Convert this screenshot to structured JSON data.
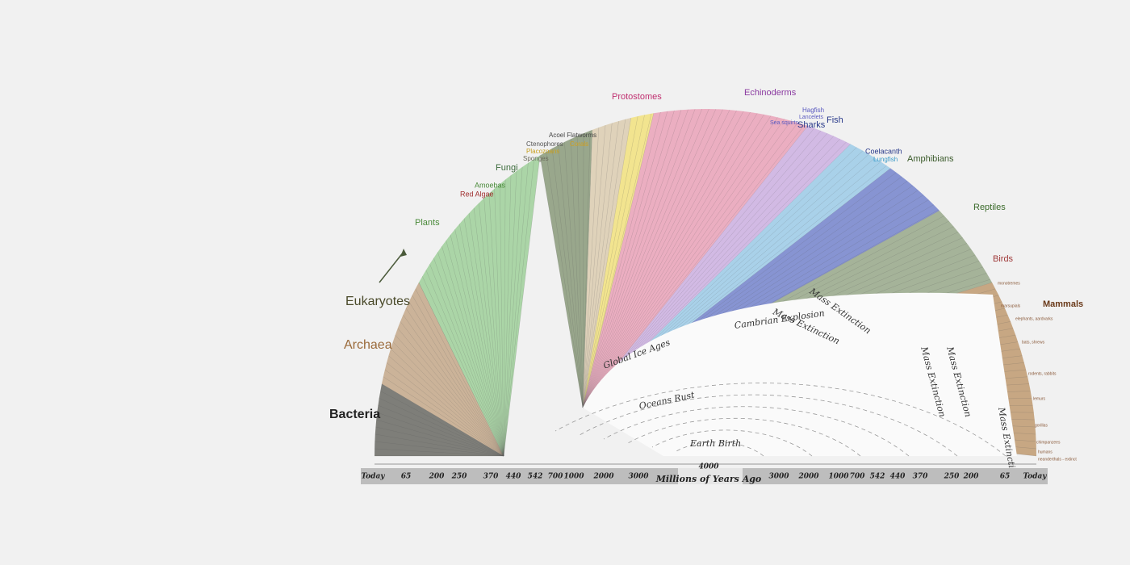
{
  "groups": [
    "Bacteria",
    "Archaea",
    "Eukaryotes",
    "Plants",
    "Red Algae",
    "Amoebas",
    "Fungi",
    "Sponges",
    "Placozoans",
    "Ctenophores",
    "Corals",
    "Acoel Flatworms",
    "Protostomes",
    "Echinoderms",
    "Sharks",
    "Fish",
    "Hagfish",
    "Lancelets",
    "Sea squirts",
    "Coelacanth",
    "Lungfish",
    "Amphibians",
    "Reptiles",
    "Birds",
    "Mammals"
  ],
  "events": [
    "Earth Birth",
    "Oceans Rust",
    "Global Ice Ages",
    "Cambrian Explosion",
    "Mass Extinction",
    "Mass Extinction",
    "Mass Extinction",
    "Mass Extinction",
    "Mass Extinction"
  ],
  "species": [
    "monotremes",
    "marsupials",
    "elephants, aardvarks",
    "bats, shrews",
    "rodents, rabbits",
    "lemurs",
    "gorillas",
    "chimpanzees",
    "humans",
    "neanderthals - extinct"
  ],
  "axis": {
    "ticks": [
      "Today",
      "65",
      "200",
      "250",
      "370",
      "440",
      "542",
      "700",
      "1000",
      "2000",
      "3000",
      "4000",
      "3000",
      "2000",
      "1000",
      "700",
      "542",
      "440",
      "370",
      "250",
      "200",
      "65",
      "Today"
    ],
    "title": "Millions of Years Ago"
  }
}
